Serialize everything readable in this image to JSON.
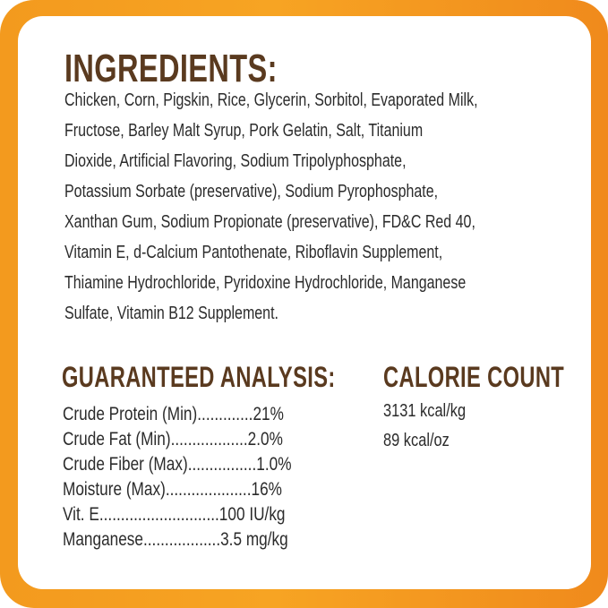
{
  "colors": {
    "border": "#f39a1e",
    "heading": "#5a3a1f",
    "text": "#2b2b2b",
    "background": "#ffffff"
  },
  "ingredients": {
    "title": "INGREDIENTS:",
    "lines": [
      "Chicken, Corn, Pigskin, Rice, Glycerin, Sorbitol, Evaporated Milk,",
      "Fructose, Barley Malt Syrup, Pork Gelatin, Salt, Titanium",
      "Dioxide, Artificial Flavoring, Sodium Tripolyphosphate,",
      "Potassium Sorbate (preservative), Sodium Pyrophosphate,",
      "Xanthan Gum, Sodium Propionate (preservative), FD&C Red 40,",
      "Vitamin E, d-Calcium Pantothenate, Riboflavin Supplement,",
      "Thiamine Hydrochloride, Pyridoxine Hydrochloride, Manganese",
      "Sulfate, Vitamin B12 Supplement."
    ]
  },
  "analysis": {
    "title": "GUARANTEED ANALYSIS:",
    "rows": [
      "Crude Protein (Min).............21%",
      "Crude Fat (Min)..................2.0%",
      "Crude Fiber (Max)................1.0%",
      "Moisture (Max)....................16%",
      "Vit. E............................100 IU/kg",
      "Manganese..................3.5 mg/kg"
    ]
  },
  "calories": {
    "title": "CALORIE COUNT",
    "values": [
      "3131 kcal/kg",
      "89 kcal/oz"
    ]
  }
}
